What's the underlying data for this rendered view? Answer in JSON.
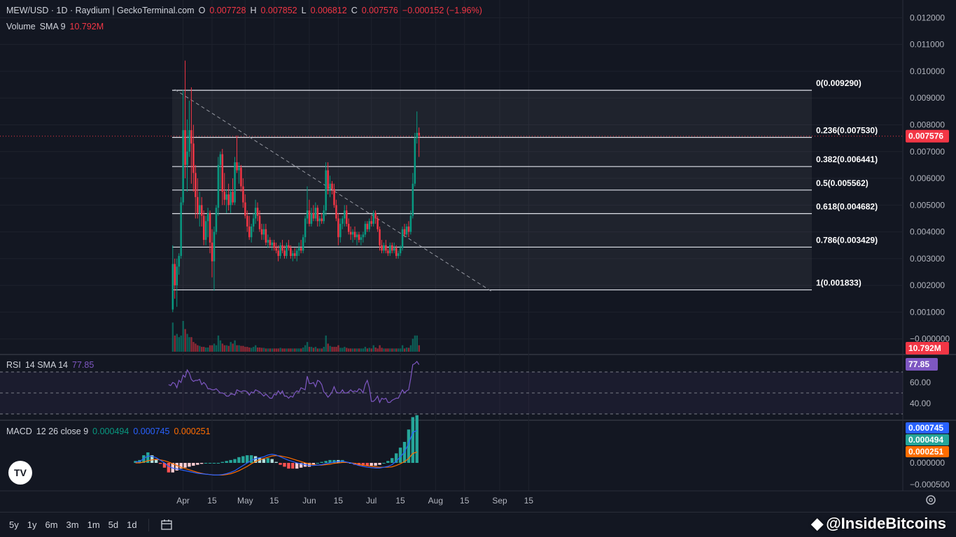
{
  "header": {
    "symbol": "MEW/USD · 1D · Raydium | GeckoTerminal.com",
    "o_key": "O",
    "o": "0.007728",
    "h_key": "H",
    "h": "0.007852",
    "l_key": "L",
    "l": "0.006812",
    "c_key": "C",
    "c": "0.007576",
    "change": "−0.000152 (−1.96%)"
  },
  "volume_legend": {
    "label": "Volume",
    "sma": "SMA 9",
    "value": "10.792M"
  },
  "rsi_legend": {
    "label": "RSI",
    "params": "14 SMA 14",
    "value": "77.85"
  },
  "macd_legend": {
    "label": "MACD",
    "params": "12 26 close 9",
    "v1": "0.000494",
    "v2": "0.000745",
    "v3": "0.000251"
  },
  "price_axis": {
    "ticks": [
      "0.012000",
      "0.011000",
      "0.010000",
      "0.009000",
      "0.008000",
      "0.007000",
      "0.006000",
      "0.005000",
      "0.004000",
      "0.003000",
      "0.002000",
      "0.001000",
      "−0.000000"
    ],
    "last_price": "0.007576",
    "volume_tag": "10.792M"
  },
  "rsi_axis": {
    "ticks": [
      "60.00",
      "40.00"
    ],
    "tag": "77.85"
  },
  "macd_axis": {
    "ticks": [
      "0.000000",
      "−0.000500"
    ],
    "tags": [
      "0.000745",
      "0.000494",
      "0.000251"
    ]
  },
  "time_axis": {
    "labels": [
      "Apr",
      "15",
      "May",
      "15",
      "Jun",
      "15",
      "Jul",
      "15",
      "Aug",
      "15",
      "Sep",
      "15"
    ]
  },
  "timeframes": [
    "5y",
    "1y",
    "6m",
    "3m",
    "1m",
    "5d",
    "1d"
  ],
  "watermark": "@InsideBitcoins",
  "colors": {
    "up": "#089981",
    "down": "#f23645",
    "bg": "#131722",
    "rsi": "#7e57c2",
    "macd": "#2962ff",
    "signal": "#ff6d00"
  },
  "chart_data": {
    "type": "candlestick",
    "fib_levels": [
      {
        "label": "0(0.009290)",
        "value": 0.00929
      },
      {
        "label": "0.236(0.007530)",
        "value": 0.00753
      },
      {
        "label": "0.382(0.006441)",
        "value": 0.006441
      },
      {
        "label": "0.5(0.005562)",
        "value": 0.005562
      },
      {
        "label": "0.618(0.004682)",
        "value": 0.004682
      },
      {
        "label": "0.786(0.003429)",
        "value": 0.003429
      },
      {
        "label": "1(0.001833)",
        "value": 0.001833
      }
    ],
    "trendline": {
      "start": [
        "Mar 28",
        0.00932
      ],
      "end": [
        "Aug 28",
        0.00178
      ]
    },
    "candles": [
      [
        0.0011,
        0.0035,
        0.001,
        0.0028
      ],
      [
        0.0028,
        0.003,
        0.0015,
        0.002
      ],
      [
        0.002,
        0.003,
        0.0012,
        0.0027
      ],
      [
        0.0027,
        0.0032,
        0.0024,
        0.0031
      ],
      [
        0.0031,
        0.0053,
        0.003,
        0.0051
      ],
      [
        0.0051,
        0.0093,
        0.005,
        0.0078
      ],
      [
        0.0078,
        0.0104,
        0.006,
        0.0065
      ],
      [
        0.0065,
        0.0082,
        0.0055,
        0.007
      ],
      [
        0.007,
        0.0089,
        0.0068,
        0.0078
      ],
      [
        0.0078,
        0.0094,
        0.0058,
        0.0073
      ],
      [
        0.0073,
        0.008,
        0.0055,
        0.0062
      ],
      [
        0.0062,
        0.0065,
        0.0045,
        0.0053
      ],
      [
        0.0053,
        0.006,
        0.0045,
        0.0047
      ],
      [
        0.0047,
        0.0055,
        0.0042,
        0.005
      ],
      [
        0.005,
        0.0053,
        0.0042,
        0.0046
      ],
      [
        0.0046,
        0.0048,
        0.0035,
        0.0037
      ],
      [
        0.0037,
        0.0046,
        0.0035,
        0.0044
      ],
      [
        0.0044,
        0.0049,
        0.0038,
        0.0047
      ],
      [
        0.0047,
        0.0048,
        0.0032,
        0.0036
      ],
      [
        0.0036,
        0.0041,
        0.0023,
        0.0029
      ],
      [
        0.0029,
        0.0042,
        0.0018,
        0.004
      ],
      [
        0.004,
        0.005,
        0.0039,
        0.0049
      ],
      [
        0.0049,
        0.0068,
        0.0046,
        0.0065
      ],
      [
        0.0065,
        0.007,
        0.0056,
        0.0069
      ],
      [
        0.0069,
        0.0071,
        0.005,
        0.0055
      ],
      [
        0.0055,
        0.0062,
        0.005,
        0.0052
      ],
      [
        0.0052,
        0.0056,
        0.0047,
        0.0054
      ],
      [
        0.0054,
        0.0058,
        0.0048,
        0.005
      ],
      [
        0.005,
        0.0056,
        0.0047,
        0.0055
      ],
      [
        0.0055,
        0.006,
        0.005,
        0.0051
      ],
      [
        0.0051,
        0.0068,
        0.005,
        0.0066
      ],
      [
        0.0066,
        0.0076,
        0.0062,
        0.0063
      ],
      [
        0.0063,
        0.0066,
        0.0058,
        0.0064
      ],
      [
        0.0064,
        0.0065,
        0.0055,
        0.0057
      ],
      [
        0.0057,
        0.006,
        0.0049,
        0.0051
      ],
      [
        0.0051,
        0.0054,
        0.0045,
        0.0046
      ],
      [
        0.0046,
        0.0048,
        0.004,
        0.0042
      ],
      [
        0.0042,
        0.0046,
        0.0037,
        0.0038
      ],
      [
        0.0038,
        0.0043,
        0.0036,
        0.0042
      ],
      [
        0.0042,
        0.0047,
        0.004,
        0.0045
      ],
      [
        0.0045,
        0.0052,
        0.0043,
        0.0049
      ],
      [
        0.0049,
        0.0051,
        0.0044,
        0.0046
      ],
      [
        0.0046,
        0.0048,
        0.004,
        0.0041
      ],
      [
        0.0041,
        0.0043,
        0.0037,
        0.0039
      ],
      [
        0.0039,
        0.0043,
        0.0037,
        0.0041
      ],
      [
        0.0041,
        0.0043,
        0.0035,
        0.0036
      ],
      [
        0.0036,
        0.0039,
        0.0034,
        0.0037
      ],
      [
        0.0037,
        0.0038,
        0.0034,
        0.0035
      ],
      [
        0.0035,
        0.0037,
        0.0033,
        0.0036
      ],
      [
        0.0036,
        0.0037,
        0.0033,
        0.0034
      ],
      [
        0.0034,
        0.0036,
        0.0032,
        0.0033
      ],
      [
        0.0033,
        0.0035,
        0.0029,
        0.0031
      ],
      [
        0.0031,
        0.0036,
        0.003,
        0.0035
      ],
      [
        0.0035,
        0.0037,
        0.0032,
        0.0033
      ],
      [
        0.0033,
        0.0035,
        0.003,
        0.0031
      ],
      [
        0.0031,
        0.0036,
        0.003,
        0.0035
      ],
      [
        0.0035,
        0.0037,
        0.0033,
        0.0034
      ],
      [
        0.0034,
        0.0035,
        0.003,
        0.0031
      ],
      [
        0.0031,
        0.0033,
        0.0029,
        0.0032
      ],
      [
        0.0032,
        0.0034,
        0.003,
        0.0031
      ],
      [
        0.0031,
        0.0034,
        0.0029,
        0.0033
      ],
      [
        0.0033,
        0.0036,
        0.0031,
        0.0034
      ],
      [
        0.0034,
        0.0037,
        0.0032,
        0.0033
      ],
      [
        0.0033,
        0.0039,
        0.0032,
        0.0038
      ],
      [
        0.0038,
        0.0046,
        0.0036,
        0.0045
      ],
      [
        0.0045,
        0.0057,
        0.0043,
        0.0048
      ],
      [
        0.0048,
        0.0052,
        0.0042,
        0.0043
      ],
      [
        0.0043,
        0.0049,
        0.0042,
        0.0047
      ],
      [
        0.0047,
        0.005,
        0.0044,
        0.0045
      ],
      [
        0.0045,
        0.0051,
        0.0044,
        0.0049
      ],
      [
        0.0049,
        0.005,
        0.0042,
        0.0044
      ],
      [
        0.0044,
        0.0046,
        0.0042,
        0.0045
      ],
      [
        0.0045,
        0.0047,
        0.0043,
        0.0044
      ],
      [
        0.0044,
        0.005,
        0.0043,
        0.0048
      ],
      [
        0.0048,
        0.0066,
        0.0046,
        0.0063
      ],
      [
        0.0063,
        0.0066,
        0.0054,
        0.0056
      ],
      [
        0.0056,
        0.0061,
        0.0053,
        0.0058
      ],
      [
        0.0058,
        0.0059,
        0.0054,
        0.0056
      ],
      [
        0.0056,
        0.0058,
        0.0049,
        0.005
      ],
      [
        0.005,
        0.0052,
        0.0044,
        0.0045
      ],
      [
        0.0045,
        0.0047,
        0.0035,
        0.0038
      ],
      [
        0.0038,
        0.0045,
        0.0036,
        0.0043
      ],
      [
        0.0043,
        0.0046,
        0.0041,
        0.0045
      ],
      [
        0.0045,
        0.005,
        0.0042,
        0.0048
      ],
      [
        0.0048,
        0.005,
        0.0042,
        0.0043
      ],
      [
        0.0043,
        0.0045,
        0.0039,
        0.004
      ],
      [
        0.004,
        0.0042,
        0.0037,
        0.0039
      ],
      [
        0.0039,
        0.0041,
        0.0036,
        0.004
      ],
      [
        0.004,
        0.0042,
        0.0037,
        0.0038
      ],
      [
        0.0038,
        0.004,
        0.0035,
        0.0039
      ],
      [
        0.0039,
        0.004,
        0.0036,
        0.0037
      ],
      [
        0.0037,
        0.0039,
        0.0035,
        0.0038
      ],
      [
        0.0038,
        0.004,
        0.0036,
        0.0039
      ],
      [
        0.0039,
        0.0044,
        0.0038,
        0.0043
      ],
      [
        0.0043,
        0.0044,
        0.004,
        0.0041
      ],
      [
        0.0041,
        0.0045,
        0.004,
        0.0044
      ],
      [
        0.0044,
        0.0046,
        0.0042,
        0.0043
      ],
      [
        0.0043,
        0.0048,
        0.0042,
        0.0047
      ],
      [
        0.0047,
        0.0048,
        0.0043,
        0.0045
      ],
      [
        0.0045,
        0.0046,
        0.004,
        0.0041
      ],
      [
        0.0041,
        0.0042,
        0.0033,
        0.0035
      ],
      [
        0.0035,
        0.0037,
        0.0032,
        0.0033
      ],
      [
        0.0033,
        0.0036,
        0.0032,
        0.0035
      ],
      [
        0.0035,
        0.0037,
        0.0032,
        0.0033
      ],
      [
        0.0033,
        0.0034,
        0.0031,
        0.0032
      ],
      [
        0.0032,
        0.0036,
        0.0031,
        0.0035
      ],
      [
        0.0035,
        0.0036,
        0.0032,
        0.0033
      ],
      [
        0.0033,
        0.0036,
        0.0032,
        0.0034
      ],
      [
        0.0034,
        0.0035,
        0.003,
        0.0031
      ],
      [
        0.0031,
        0.0033,
        0.003,
        0.0032
      ],
      [
        0.0032,
        0.0035,
        0.0031,
        0.0034
      ],
      [
        0.0034,
        0.0042,
        0.0033,
        0.0041
      ],
      [
        0.0041,
        0.0043,
        0.0038,
        0.0039
      ],
      [
        0.0039,
        0.0043,
        0.0038,
        0.0042
      ],
      [
        0.0042,
        0.0044,
        0.0038,
        0.004
      ],
      [
        0.004,
        0.0048,
        0.0039,
        0.0046
      ],
      [
        0.0046,
        0.0062,
        0.0045,
        0.0058
      ],
      [
        0.0058,
        0.0077,
        0.0057,
        0.0075
      ],
      [
        0.0075,
        0.0085,
        0.0073,
        0.0077
      ],
      [
        0.0077,
        0.0079,
        0.0068,
        0.0076
      ]
    ],
    "volume": [
      0.9,
      0.5,
      0.55,
      0.45,
      0.5,
      0.95,
      0.7,
      0.55,
      0.45,
      0.45,
      0.3,
      0.25,
      0.2,
      0.18,
      0.15,
      0.15,
      0.13,
      0.13,
      0.2,
      0.2,
      0.25,
      0.2,
      0.5,
      0.35,
      0.25,
      0.2,
      0.2,
      0.18,
      0.3,
      0.25,
      0.35,
      0.2,
      0.2,
      0.18,
      0.18,
      0.15,
      0.15,
      0.13,
      0.12,
      0.15,
      0.2,
      0.13,
      0.13,
      0.12,
      0.12,
      0.1,
      0.1,
      0.1,
      0.1,
      0.1,
      0.1,
      0.1,
      0.12,
      0.1,
      0.1,
      0.1,
      0.1,
      0.1,
      0.1,
      0.1,
      0.1,
      0.1,
      0.1,
      0.13,
      0.2,
      0.3,
      0.15,
      0.15,
      0.12,
      0.15,
      0.1,
      0.1,
      0.1,
      0.15,
      0.5,
      0.25,
      0.18,
      0.15,
      0.15,
      0.15,
      0.2,
      0.12,
      0.12,
      0.15,
      0.12,
      0.1,
      0.1,
      0.1,
      0.1,
      0.1,
      0.1,
      0.1,
      0.1,
      0.15,
      0.1,
      0.12,
      0.1,
      0.2,
      0.13,
      0.1,
      0.2,
      0.12,
      0.1,
      0.1,
      0.1,
      0.1,
      0.1,
      0.1,
      0.1,
      0.1,
      0.1,
      0.2,
      0.1,
      0.13,
      0.12,
      0.2,
      0.4,
      0.5,
      0.5,
      0.2
    ],
    "rsi": [
      58,
      57,
      60,
      59,
      55,
      62,
      60,
      67,
      65,
      72,
      69,
      63,
      61,
      62,
      62,
      63,
      58,
      60,
      58,
      54,
      54,
      53,
      53,
      54,
      52,
      50,
      50,
      49,
      47,
      47,
      49,
      49,
      48,
      53,
      52,
      51,
      52,
      52,
      51,
      48,
      51,
      50,
      53,
      52,
      51,
      49,
      47,
      49,
      47,
      45,
      45,
      49,
      48,
      52,
      49,
      52,
      47,
      47,
      45,
      47,
      46,
      50,
      52,
      51,
      55,
      54,
      53,
      66,
      59,
      59,
      60,
      56,
      62,
      61,
      58,
      51,
      49,
      46,
      48,
      51,
      56,
      51,
      50,
      50,
      53,
      50,
      50,
      51,
      53,
      51,
      52,
      51,
      54,
      53,
      50,
      58,
      62,
      55,
      42,
      42,
      44,
      47,
      41,
      45,
      44,
      45,
      41,
      41,
      43,
      44,
      45,
      45,
      49,
      53,
      50,
      52,
      53,
      64,
      77,
      78,
      80,
      77
    ],
    "macd": {
      "macd_line": [
        2e-05,
        3e-05,
        0.0001,
        0.00016,
        0.00015,
        0.00012,
        6e-05,
        0.0,
        -8e-05,
        -0.00012,
        -0.00014,
        -0.00016,
        -0.00018,
        -0.0002,
        -0.00022,
        -0.00024,
        -0.00025,
        -0.00026,
        -0.00027,
        -0.00028,
        -0.00028,
        -0.00027,
        -0.00025,
        -0.00022,
        -0.00018,
        -0.00012,
        -6e-05,
        0.0,
        6e-05,
        0.0001,
        0.00012,
        0.00014,
        0.00018,
        0.0002,
        0.00018,
        0.00014,
        0.0001,
        6e-05,
        3e-05,
        0.0,
        -2e-05,
        -4e-05,
        -6e-05,
        -6e-05,
        -5e-05,
        -4e-05,
        -2e-05,
        0.0,
        2e-05,
        3e-05,
        4e-05,
        2e-05,
        0.0,
        -3e-05,
        -6e-05,
        -8e-05,
        -0.0001,
        -0.00011,
        -0.00012,
        -0.00012,
        -0.0001,
        -8e-05,
        -4e-05,
        4e-05,
        0.00014,
        0.00025,
        0.00045,
        0.0007,
        0.00075
      ],
      "signal_line": [
        0.0,
        0.0,
        2e-05,
        5e-05,
        7e-05,
        8e-05,
        7e-05,
        5e-05,
        2e-05,
        -2e-05,
        -6e-05,
        -0.0001,
        -0.00013,
        -0.00016,
        -0.00019,
        -0.00022,
        -0.00024,
        -0.00026,
        -0.00027,
        -0.00028,
        -0.00028,
        -0.00028,
        -0.00027,
        -0.00025,
        -0.00022,
        -0.00018,
        -0.00013,
        -8e-05,
        -2e-05,
        3e-05,
        7e-05,
        0.0001,
        0.00013,
        0.00016,
        0.00017,
        0.00016,
        0.00014,
        0.00012,
        9e-05,
        6e-05,
        3e-05,
        0.0,
        -2e-05,
        -4e-05,
        -5e-05,
        -5e-05,
        -4e-05,
        -3e-05,
        -1e-05,
        0.0,
        1e-05,
        1e-05,
        0.0,
        -1e-05,
        -3e-05,
        -5e-05,
        -7e-05,
        -8e-05,
        -9e-05,
        -0.0001,
        -0.0001,
        -0.0001,
        -9e-05,
        -6e-05,
        -2e-05,
        3e-05,
        0.0001,
        0.00022,
        0.00025
      ]
    }
  }
}
